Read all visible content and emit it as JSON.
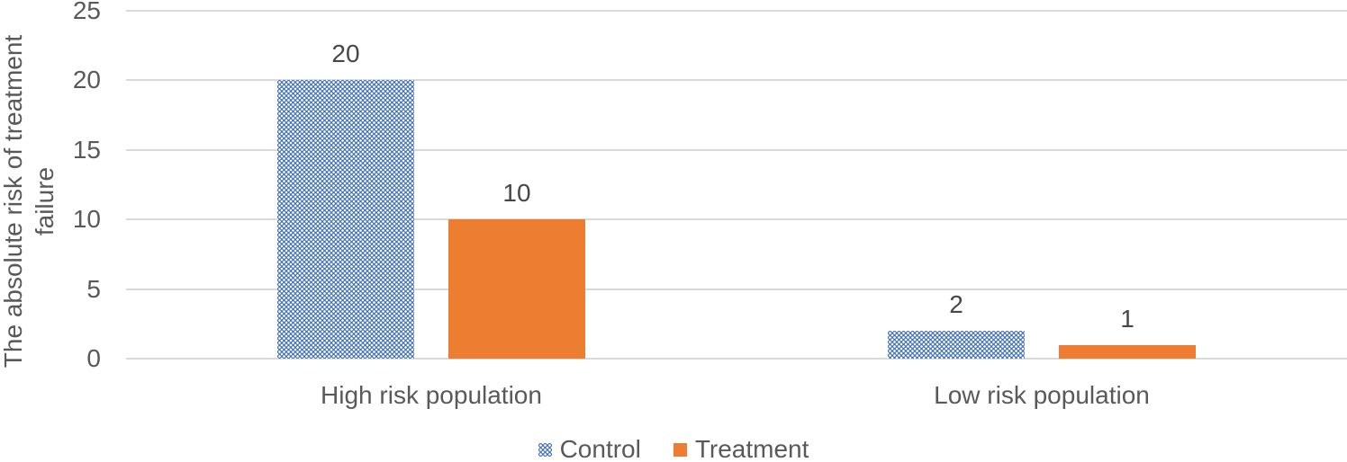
{
  "chart_data": {
    "type": "bar",
    "title": "",
    "ylabel": "The absolute risk of treatment failure",
    "xlabel": "",
    "categories": [
      "High risk population",
      "Low risk population"
    ],
    "series": [
      {
        "name": "Control",
        "values": [
          20,
          2
        ],
        "color": "#4472C4",
        "fill": "dotted"
      },
      {
        "name": "Treatment",
        "values": [
          10,
          1
        ],
        "color": "#ED7D31",
        "fill": "solid"
      }
    ],
    "data_labels": true,
    "ylim": [
      0,
      25
    ],
    "yticks": [
      0,
      5,
      10,
      15,
      20,
      25
    ],
    "grid": true,
    "legend_position": "bottom-center",
    "colors": {
      "gridline": "#D9D9D9",
      "axis_text": "#595959",
      "data_label_text": "#474747"
    }
  }
}
